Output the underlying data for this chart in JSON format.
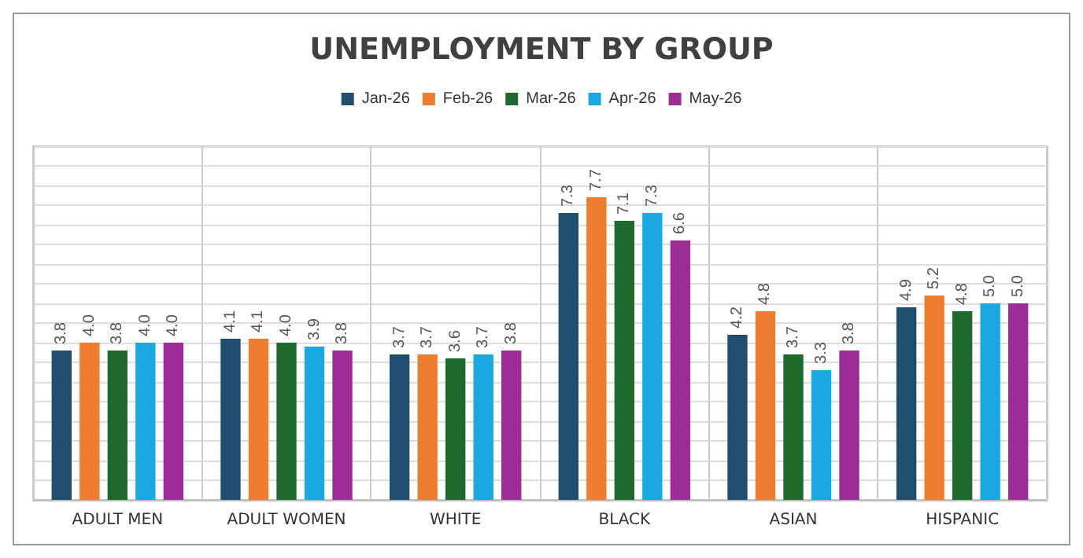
{
  "chart_data": {
    "type": "bar",
    "title": "UNEMPLOYMENT BY GROUP",
    "categories": [
      "ADULT MEN",
      "ADULT WOMEN",
      "WHITE",
      "BLACK",
      "ASIAN",
      "HISPANIC"
    ],
    "series": [
      {
        "name": "Jan-26",
        "color": "#1f4e6e",
        "values": [
          3.8,
          4.1,
          3.7,
          7.3,
          4.2,
          4.9
        ],
        "value_labels": [
          "3.8",
          "4.1",
          "3.7",
          "7.3",
          "4.2",
          "4.9"
        ]
      },
      {
        "name": "Feb-26",
        "color": "#ee7d31",
        "values": [
          4.0,
          4.1,
          3.7,
          7.7,
          4.8,
          5.2
        ],
        "value_labels": [
          "4.0",
          "4.1",
          "3.7",
          "7.7",
          "4.8",
          "5.2"
        ]
      },
      {
        "name": "Mar-26",
        "color": "#1e6a2c",
        "values": [
          3.8,
          4.0,
          3.6,
          7.1,
          3.7,
          4.8
        ],
        "value_labels": [
          "3.8",
          "4.0",
          "3.6",
          "7.1",
          "3.7",
          "4.8"
        ]
      },
      {
        "name": "Apr-26",
        "color": "#1ba7e0",
        "values": [
          4.0,
          3.9,
          3.7,
          7.3,
          3.3,
          5.0
        ],
        "value_labels": [
          "4.0",
          "3.9",
          "3.7",
          "7.3",
          "3.3",
          "5.0"
        ]
      },
      {
        "name": "May-26",
        "color": "#9c2c96",
        "values": [
          4.0,
          3.8,
          3.8,
          6.6,
          3.8,
          5.0
        ],
        "value_labels": [
          "4.0",
          "3.8",
          "3.8",
          "6.6",
          "3.8",
          "5.0"
        ]
      }
    ],
    "ylim": [
      0,
      9
    ],
    "yticks": [
      {
        "value": 0,
        "label": null
      },
      {
        "value": 0.5,
        "label": null
      },
      {
        "value": 1,
        "label": null
      },
      {
        "value": 1.5,
        "label": null
      },
      {
        "value": 2,
        "label": null
      },
      {
        "value": 2.5,
        "label": null
      },
      {
        "value": 3,
        "label": null
      },
      {
        "value": 3.5,
        "label": null
      },
      {
        "value": 4,
        "label": null
      },
      {
        "value": 4.5,
        "label": null
      },
      {
        "value": 5,
        "label": null
      },
      {
        "value": 5.5,
        "label": null
      },
      {
        "value": 6,
        "label": null
      },
      {
        "value": 6.5,
        "label": null
      },
      {
        "value": 7,
        "label": null
      },
      {
        "value": 7.5,
        "label": null
      },
      {
        "value": 8,
        "label": null
      },
      {
        "value": 8.5,
        "label": null
      },
      {
        "value": 9,
        "label": null
      }
    ],
    "grid": true,
    "legend": "top"
  }
}
